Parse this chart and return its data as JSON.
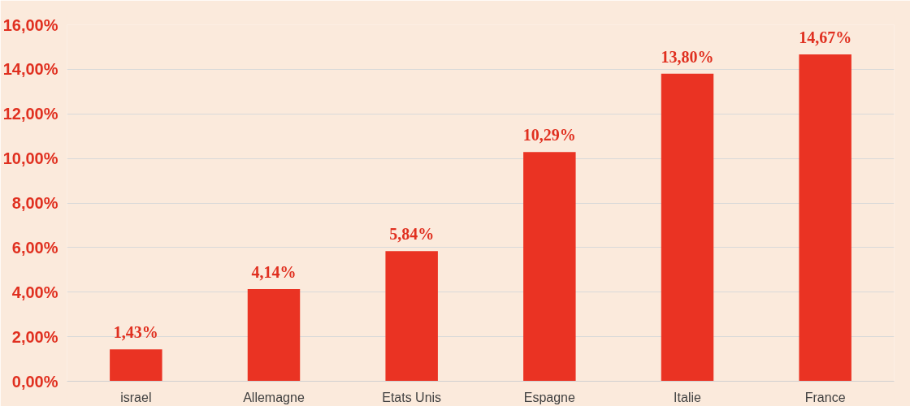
{
  "chart_data": {
    "type": "bar",
    "categories": [
      "israel",
      "Allemagne",
      "Etats Unis",
      "Espagne",
      "Italie",
      "France"
    ],
    "values": [
      1.43,
      4.14,
      5.84,
      10.29,
      13.8,
      14.67
    ],
    "value_labels": [
      "1,43%",
      "4,14%",
      "5,84%",
      "10,29%",
      "13,80%",
      "14,67%"
    ],
    "color": "#ea3323",
    "ylim": [
      0,
      16
    ],
    "yticks": [
      {
        "value": 0,
        "label": "0,00%"
      },
      {
        "value": 2,
        "label": "2,00%"
      },
      {
        "value": 4,
        "label": "4,00%"
      },
      {
        "value": 6,
        "label": "6,00%"
      },
      {
        "value": 8,
        "label": "8,00%"
      },
      {
        "value": 10,
        "label": "10,00%"
      },
      {
        "value": 12,
        "label": "12,00%"
      },
      {
        "value": 14,
        "label": "14,00%"
      },
      {
        "value": 16,
        "label": "16,00%"
      }
    ],
    "grid": "y"
  }
}
